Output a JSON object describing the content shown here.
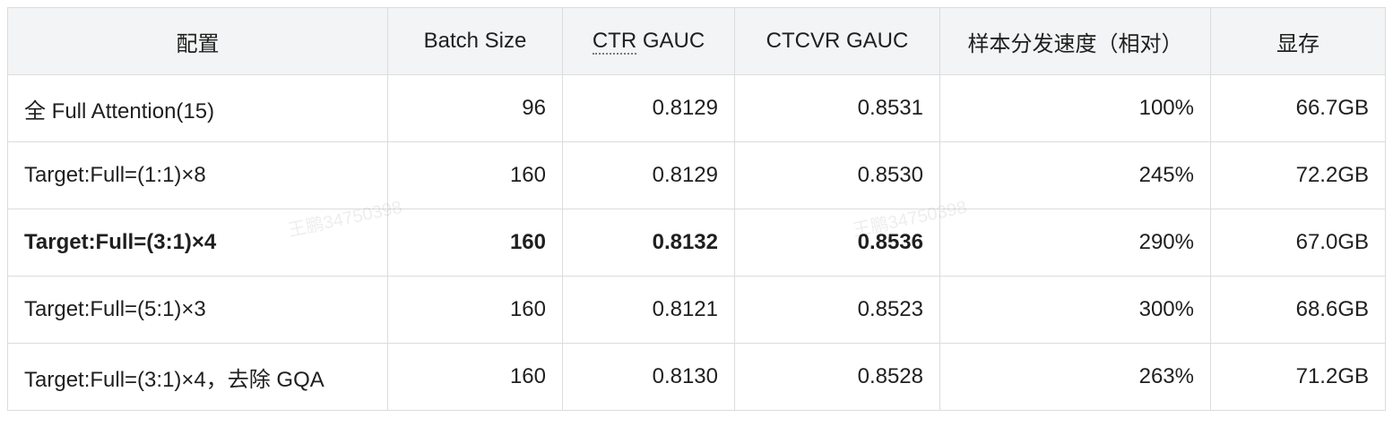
{
  "table": {
    "header": [
      "配置",
      "Batch Size",
      "CTR GAUC",
      "CTCVR GAUC",
      "样本分发速度（相对）",
      "显存"
    ],
    "rows": [
      [
        "全 Full Attention(15)",
        "96",
        "0.8129",
        "0.8531",
        "100%",
        "66.7GB"
      ],
      [
        "Target:Full=(1:1)×8",
        "160",
        "0.8129",
        "0.8530",
        "245%",
        "72.2GB"
      ],
      [
        "Target:Full=(3:1)×4",
        "160",
        "0.8132",
        "0.8536",
        "290%",
        "67.0GB"
      ],
      [
        "Target:Full=(5:1)×3",
        "160",
        "0.8121",
        "0.8523",
        "300%",
        "68.6GB"
      ],
      [
        "Target:Full=(3:1)×4，去除 GQA",
        "160",
        "0.8130",
        "0.8528",
        "263%",
        "71.2GB"
      ]
    ]
  },
  "watermarks": [
    "王鹏34750398",
    "王鹏34750398"
  ]
}
